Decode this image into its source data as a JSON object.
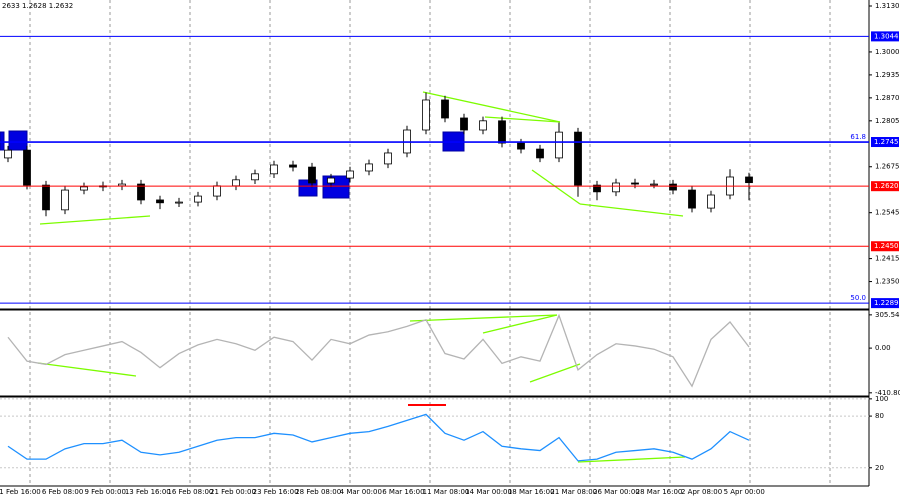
{
  "chart_data": [
    {
      "type": "candlestick",
      "header": "2633 1.2628 1.2632",
      "ylim": [
        1.2278,
        1.3147
      ],
      "yticks": [
        {
          "value": 1.313,
          "label": "1.3130"
        },
        {
          "value": 1.3,
          "label": "1.3000"
        },
        {
          "value": 1.2935,
          "label": "1.2935"
        },
        {
          "value": 1.287,
          "label": "1.2870"
        },
        {
          "value": 1.2805,
          "label": "1.2805"
        },
        {
          "value": 1.2675,
          "label": "1.2675"
        },
        {
          "value": 1.2545,
          "label": "1.2545"
        },
        {
          "value": 1.2415,
          "label": "1.2415"
        },
        {
          "value": 1.235,
          "label": "1.2350"
        }
      ],
      "levels": [
        {
          "value": 1.3044,
          "label": "1.3044",
          "color": "#0000ff"
        },
        {
          "value": 1.2745,
          "label": "1.2745",
          "color": "#0000ff",
          "fib": "61.8"
        },
        {
          "value": 1.262,
          "label": "1.2620",
          "color": "#ff0000"
        },
        {
          "value": 1.245,
          "label": "1.2450",
          "color": "#ff0000"
        },
        {
          "value": 1.2289,
          "label": "1.2289",
          "color": "#0000ff",
          "fib": "50.0"
        }
      ],
      "x_labels": [
        "1 Feb 16:00",
        "6 Feb 08:00",
        "9 Feb 00:00",
        "13 Feb 16:00",
        "16 Feb 08:00",
        "21 Feb 00:00",
        "23 Feb 16:00",
        "28 Feb 08:00",
        "4 Mar 00:00",
        "6 Mar 16:00",
        "11 Mar 08:00",
        "14 Mar 00:00",
        "18 Mar 16:00",
        "21 Mar 08:00",
        "26 Mar 00:00",
        "28 Mar 16:00",
        "2 Apr 08:00",
        "5 Apr 00:00"
      ],
      "open": [
        1.27,
        1.2722,
        1.2623,
        1.2553,
        1.2609,
        1.2618,
        1.2621,
        1.2626,
        1.2581,
        1.2573,
        1.2575,
        1.2592,
        1.2621,
        1.2638,
        1.2655,
        1.268,
        1.2674,
        1.2629,
        1.2643,
        1.2663,
        1.2683,
        1.2714,
        1.2779,
        1.2864,
        1.2813,
        1.2779,
        1.2805,
        1.2742,
        1.2725,
        1.27,
        1.2773,
        1.2623,
        1.2604,
        1.2629,
        1.2626,
        1.2626,
        1.2609,
        1.2558,
        1.2595,
        1.2646
      ],
      "high": [
        1.2734,
        1.2734,
        1.2635,
        1.2621,
        1.263,
        1.2633,
        1.2638,
        1.2638,
        1.2593,
        1.2587,
        1.2604,
        1.2633,
        1.265,
        1.2667,
        1.2692,
        1.2692,
        1.2686,
        1.2655,
        1.2675,
        1.2695,
        1.2726,
        1.2791,
        1.2885,
        1.2876,
        1.2825,
        1.2817,
        1.2817,
        1.2754,
        1.2737,
        1.28,
        1.2785,
        1.2635,
        1.2641,
        1.2641,
        1.2638,
        1.2638,
        1.2621,
        1.2607,
        1.2668,
        1.2658
      ],
      "low": [
        1.2688,
        1.2611,
        1.2535,
        1.2541,
        1.2597,
        1.2606,
        1.2609,
        1.2569,
        1.2555,
        1.2561,
        1.2563,
        1.258,
        1.2609,
        1.2626,
        1.2643,
        1.2662,
        1.2617,
        1.2617,
        1.2631,
        1.2651,
        1.2671,
        1.2702,
        1.2767,
        1.2801,
        1.2767,
        1.2767,
        1.273,
        1.2713,
        1.2688,
        1.2688,
        1.259,
        1.258,
        1.2592,
        1.2614,
        1.2614,
        1.2597,
        1.2546,
        1.2546,
        1.2583,
        1.258
      ],
      "close": [
        1.2722,
        1.2623,
        1.2553,
        1.2609,
        1.2618,
        1.2621,
        1.2626,
        1.2581,
        1.2573,
        1.2575,
        1.2592,
        1.2621,
        1.2638,
        1.2655,
        1.268,
        1.2674,
        1.2629,
        1.2643,
        1.2663,
        1.2683,
        1.2714,
        1.2779,
        1.2864,
        1.2813,
        1.2779,
        1.2805,
        1.2742,
        1.2725,
        1.27,
        1.2773,
        1.2623,
        1.2604,
        1.2629,
        1.2626,
        1.2626,
        1.2609,
        1.2558,
        1.2595,
        1.2646,
        1.263
      ]
    },
    {
      "type": "line",
      "color": "#b4b4b4",
      "ylim": [
        -440,
        341
      ],
      "yticks": [
        305.5401,
        {
          "value": 0,
          "label": "0.00"
        },
        -410.803
      ],
      "values": [
        100,
        -120,
        -150,
        -60,
        -20,
        20,
        60,
        -40,
        -180,
        -50,
        30,
        80,
        40,
        -20,
        100,
        60,
        -110,
        80,
        40,
        120,
        150,
        200,
        260,
        -50,
        -100,
        80,
        -140,
        -80,
        -120,
        300,
        -200,
        -60,
        40,
        20,
        -10,
        -80,
        -350,
        80,
        240,
        10
      ]
    },
    {
      "type": "line",
      "color": "#1e90ff",
      "ylim": [
        0,
        101
      ],
      "yticks": [
        100,
        80,
        20
      ],
      "values": [
        45,
        30,
        30,
        42,
        48,
        48,
        52,
        38,
        35,
        38,
        45,
        52,
        55,
        55,
        60,
        58,
        50,
        55,
        60,
        62,
        68,
        75,
        82,
        60,
        52,
        62,
        45,
        42,
        40,
        55,
        28,
        30,
        38,
        40,
        42,
        38,
        30,
        42,
        62,
        52
      ]
    }
  ]
}
